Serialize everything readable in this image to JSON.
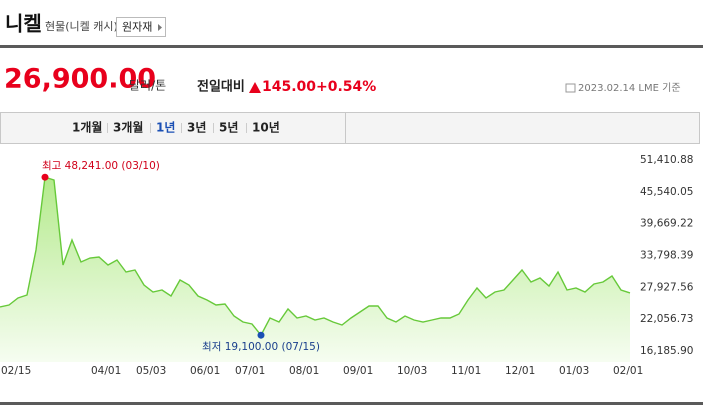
{
  "header": {
    "title": "니켈",
    "subtitle": "현물(니켈 캐시)",
    "button": "원자재"
  },
  "price": {
    "value": "26,900.00",
    "unit": "달러/톤",
    "change_label": "전일대비",
    "change": "145.00",
    "change_pct": "+0.54%",
    "date": "2023.02.14 LME 기준"
  },
  "periods": [
    "1개월",
    "3개월",
    "1년",
    "3년",
    "5년",
    "10년"
  ],
  "selected_period": "1년",
  "chart_data": {
    "type": "area",
    "color": "#67c93a",
    "high_label": "최고 48,241.00 (03/10)",
    "low_label": "최저 19,100.00 (07/15)",
    "categories": [
      "02/15",
      null,
      null,
      null,
      null,
      null,
      null,
      null,
      null,
      null,
      "04/01",
      null,
      null,
      null,
      null,
      "05/03",
      null,
      null,
      null,
      null,
      null,
      "06/01",
      null,
      null,
      null,
      null,
      "07/01",
      null,
      null,
      null,
      null,
      null,
      "08/01",
      null,
      null,
      null,
      null,
      null,
      "09/01",
      null,
      null,
      null,
      null,
      null,
      "10/03",
      null,
      null,
      null,
      null,
      null,
      "11/01",
      null,
      null,
      null,
      null,
      null,
      "12/01",
      null,
      null,
      null,
      null,
      null,
      "01/03",
      null,
      null,
      null,
      null,
      null,
      "02/01",
      null,
      null
    ],
    "values": [
      24300,
      24670,
      25960,
      26510,
      34810,
      48241,
      47720,
      32050,
      36660,
      32600,
      33340,
      33520,
      32050,
      32970,
      30750,
      31120,
      28360,
      27070,
      27440,
      26330,
      29280,
      28360,
      26330,
      25590,
      24670,
      24850,
      22640,
      21530,
      21170,
      19100,
      22270,
      21530,
      23930,
      22270,
      22640,
      21900,
      22270,
      21530,
      20980,
      22270,
      23380,
      24480,
      24480,
      22270,
      21530,
      22640,
      21900,
      21530,
      21900,
      22270,
      22270,
      23010,
      25590,
      27800,
      25960,
      27070,
      27440,
      29280,
      31120,
      28910,
      29650,
      28170,
      30750,
      27440,
      27800,
      27070,
      28540,
      28910,
      30020,
      27440,
      26900
    ],
    "ylim": [
      16185.9,
      51410.88
    ],
    "yticks": [
      {
        "value": 51410.88,
        "label": "51,410.88"
      },
      {
        "value": 45540.05,
        "label": "45,540.05"
      },
      {
        "value": 39669.22,
        "label": "39,669.22"
      },
      {
        "value": 33798.39,
        "label": "33,798.39"
      },
      {
        "value": 27927.56,
        "label": "27,927.56"
      },
      {
        "value": 22056.73,
        "label": "22,056.73"
      },
      {
        "value": 16185.9,
        "label": "16,185.90"
      }
    ]
  }
}
